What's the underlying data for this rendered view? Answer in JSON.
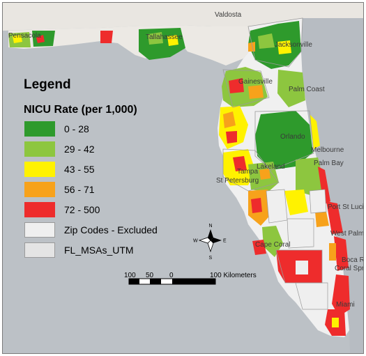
{
  "map": {
    "cities": [
      "Valdosta",
      "Pensacola",
      "Tallahassee",
      "Jacksonville",
      "Gainesville",
      "Palm Coast",
      "Orlando",
      "Melbourne",
      "Palm Bay",
      "Lakeland",
      "Tampa",
      "St Petersburg",
      "Port St Lucie",
      "West Palm Beach",
      "Cape Coral",
      "Boca Raton",
      "Coral Springs",
      "Miami"
    ],
    "excluded_color": "#efefef",
    "msa_outline_color": "#9a9a9a"
  },
  "legend": {
    "title": "Legend",
    "subtitle": "NICU Rate (per 1,000)",
    "items": [
      {
        "label": "0 - 28",
        "color": "#2e9a2c"
      },
      {
        "label": "29 - 42",
        "color": "#8dc63f"
      },
      {
        "label": "43 - 55",
        "color": "#fff200"
      },
      {
        "label": "56 - 71",
        "color": "#f7a21b"
      },
      {
        "label": "72 - 500",
        "color": "#ee2c2c"
      },
      {
        "label": "Zip Codes - Excluded",
        "color": "#efefef"
      },
      {
        "label": "FL_MSAs_UTM",
        "color": "#e4e4e4"
      }
    ]
  },
  "scale": {
    "labels": [
      "100",
      "50",
      "0",
      "100 Kilometers"
    ]
  },
  "compass": {
    "n": "N",
    "s": "S",
    "e": "E",
    "w": "W"
  }
}
